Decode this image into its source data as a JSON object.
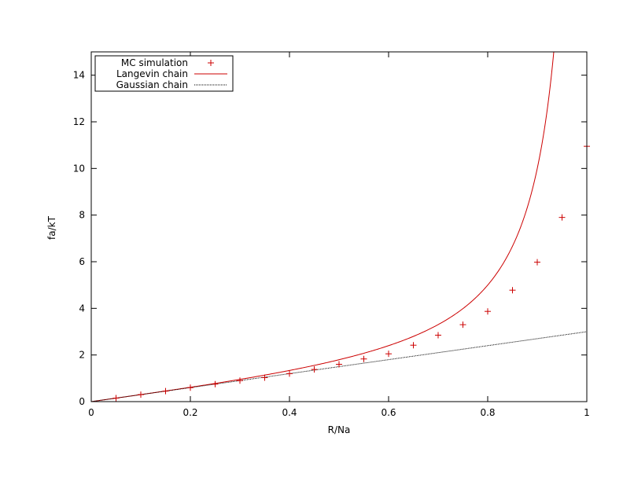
{
  "chart_data": {
    "type": "line",
    "xlabel": "R/Na",
    "ylabel": "fa/kT",
    "xlim": [
      0,
      1
    ],
    "ylim": [
      0,
      15
    ],
    "xticks": [
      0,
      0.2,
      0.4,
      0.6,
      0.8,
      1
    ],
    "xtick_labels": [
      "0",
      "0.2",
      "0.4",
      "0.6",
      "0.8",
      "1"
    ],
    "yticks": [
      0,
      2,
      4,
      6,
      8,
      10,
      12,
      14
    ],
    "ytick_labels": [
      "0",
      "2",
      "4",
      "6",
      "8",
      "10",
      "12",
      "14"
    ],
    "grid": false,
    "legend_position": "top-left",
    "series": [
      {
        "name": "MC simulation",
        "style": "points",
        "marker": "+",
        "color": "#cc0000",
        "x": [
          0.05,
          0.1,
          0.15,
          0.2,
          0.25,
          0.3,
          0.35,
          0.4,
          0.45,
          0.5,
          0.55,
          0.6,
          0.65,
          0.7,
          0.75,
          0.8,
          0.85,
          0.9,
          0.95,
          1.0
        ],
        "y": [
          0.15,
          0.3,
          0.45,
          0.6,
          0.75,
          0.9,
          1.03,
          1.2,
          1.38,
          1.6,
          1.83,
          2.05,
          2.42,
          2.85,
          3.3,
          3.87,
          4.78,
          5.98,
          7.9,
          10.95
        ]
      },
      {
        "name": "Langevin chain",
        "style": "line",
        "function": "inverse-langevin",
        "color": "#cc0000",
        "x_range": [
          0,
          0.9545
        ]
      },
      {
        "name": "Gaussian chain",
        "style": "dotted-line",
        "function": "y = 3x",
        "color": "#000000",
        "x": [
          0,
          1
        ],
        "y": [
          0,
          3
        ]
      }
    ]
  }
}
